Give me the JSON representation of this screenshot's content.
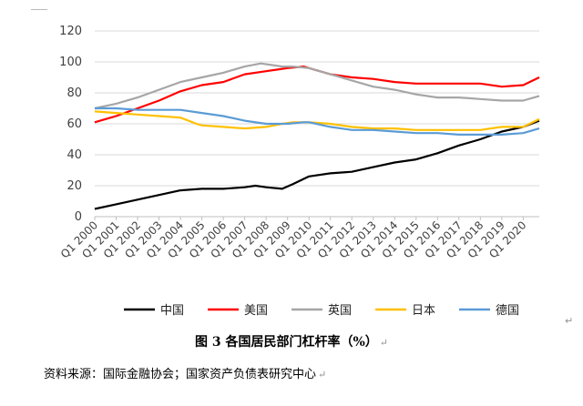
{
  "chart_data": {
    "type": "line",
    "title": "图 3 各国居民部门杠杆率（%）",
    "xlabel": "",
    "ylabel": "",
    "ylim": [
      0,
      120
    ],
    "y_ticks": [
      0,
      20,
      40,
      60,
      80,
      100,
      120
    ],
    "x_tick_labels": [
      "Q1 2000",
      "Q1 2001",
      "Q1 2002",
      "Q1 2003",
      "Q1 2004",
      "Q1 2005",
      "Q1 2006",
      "Q1 2007",
      "Q1 2008",
      "Q1 2009",
      "Q1 2010",
      "Q1 2011",
      "Q1 2012",
      "Q1 2013",
      "Q1 2014",
      "Q1 2015",
      "Q1 2016",
      "Q1 2017",
      "Q1 2018",
      "Q1 2019",
      "Q1 2020"
    ],
    "x_range": [
      2000.0,
      2020.75
    ],
    "grid": "horizontal",
    "legend_position": "bottom",
    "series": [
      {
        "name": "中国",
        "color": "#000000",
        "points": [
          [
            2000.0,
            5
          ],
          [
            2001.0,
            8
          ],
          [
            2002.0,
            11
          ],
          [
            2003.0,
            14
          ],
          [
            2004.0,
            17
          ],
          [
            2005.0,
            18
          ],
          [
            2006.0,
            18
          ],
          [
            2007.0,
            19
          ],
          [
            2007.5,
            20
          ],
          [
            2008.0,
            19
          ],
          [
            2008.75,
            18
          ],
          [
            2009.25,
            21
          ],
          [
            2010.0,
            26
          ],
          [
            2011.0,
            28
          ],
          [
            2012.0,
            29
          ],
          [
            2013.0,
            32
          ],
          [
            2014.0,
            35
          ],
          [
            2015.0,
            37
          ],
          [
            2016.0,
            41
          ],
          [
            2017.0,
            46
          ],
          [
            2018.0,
            50
          ],
          [
            2019.0,
            55
          ],
          [
            2020.0,
            58
          ],
          [
            2020.75,
            62
          ]
        ]
      },
      {
        "name": "美国",
        "color": "#ff0000",
        "points": [
          [
            2000.0,
            61
          ],
          [
            2001.0,
            65
          ],
          [
            2002.0,
            70
          ],
          [
            2003.0,
            75
          ],
          [
            2004.0,
            81
          ],
          [
            2005.0,
            85
          ],
          [
            2006.0,
            87
          ],
          [
            2007.0,
            92
          ],
          [
            2008.0,
            94
          ],
          [
            2008.5,
            95
          ],
          [
            2009.0,
            96
          ],
          [
            2009.75,
            97
          ],
          [
            2010.0,
            96
          ],
          [
            2011.0,
            92
          ],
          [
            2012.0,
            90
          ],
          [
            2013.0,
            89
          ],
          [
            2014.0,
            87
          ],
          [
            2015.0,
            86
          ],
          [
            2016.0,
            86
          ],
          [
            2017.0,
            86
          ],
          [
            2018.0,
            86
          ],
          [
            2019.0,
            84
          ],
          [
            2020.0,
            85
          ],
          [
            2020.75,
            90
          ]
        ]
      },
      {
        "name": "英国",
        "color": "#a6a6a6",
        "points": [
          [
            2000.0,
            70
          ],
          [
            2001.0,
            73
          ],
          [
            2002.0,
            77
          ],
          [
            2003.0,
            82
          ],
          [
            2004.0,
            87
          ],
          [
            2005.0,
            90
          ],
          [
            2006.0,
            93
          ],
          [
            2007.0,
            97
          ],
          [
            2007.75,
            99
          ],
          [
            2008.25,
            98
          ],
          [
            2008.75,
            97
          ],
          [
            2009.25,
            97
          ],
          [
            2010.0,
            96
          ],
          [
            2011.0,
            92
          ],
          [
            2012.0,
            88
          ],
          [
            2013.0,
            84
          ],
          [
            2014.0,
            82
          ],
          [
            2015.0,
            79
          ],
          [
            2016.0,
            77
          ],
          [
            2017.0,
            77
          ],
          [
            2018.0,
            76
          ],
          [
            2019.0,
            75
          ],
          [
            2020.0,
            75
          ],
          [
            2020.75,
            78
          ]
        ]
      },
      {
        "name": "日本",
        "color": "#ffc000",
        "points": [
          [
            2000.0,
            68
          ],
          [
            2001.0,
            67
          ],
          [
            2002.0,
            66
          ],
          [
            2003.0,
            65
          ],
          [
            2004.0,
            64
          ],
          [
            2004.75,
            60
          ],
          [
            2005.0,
            59
          ],
          [
            2006.0,
            58
          ],
          [
            2007.0,
            57
          ],
          [
            2008.0,
            58
          ],
          [
            2008.75,
            60
          ],
          [
            2009.25,
            61
          ],
          [
            2010.0,
            61
          ],
          [
            2011.0,
            60
          ],
          [
            2012.0,
            58
          ],
          [
            2013.0,
            57
          ],
          [
            2014.0,
            57
          ],
          [
            2015.0,
            56
          ],
          [
            2016.0,
            56
          ],
          [
            2017.0,
            56
          ],
          [
            2018.0,
            56
          ],
          [
            2019.0,
            58
          ],
          [
            2020.0,
            58
          ],
          [
            2020.75,
            63
          ]
        ]
      },
      {
        "name": "德国",
        "color": "#5b9bd5",
        "points": [
          [
            2000.0,
            70
          ],
          [
            2001.0,
            70
          ],
          [
            2002.0,
            69
          ],
          [
            2003.0,
            69
          ],
          [
            2004.0,
            69
          ],
          [
            2005.0,
            67
          ],
          [
            2006.0,
            65
          ],
          [
            2007.0,
            62
          ],
          [
            2008.0,
            60
          ],
          [
            2009.0,
            60
          ],
          [
            2009.75,
            61
          ],
          [
            2010.0,
            61
          ],
          [
            2011.0,
            58
          ],
          [
            2012.0,
            56
          ],
          [
            2013.0,
            56
          ],
          [
            2014.0,
            55
          ],
          [
            2015.0,
            54
          ],
          [
            2016.0,
            54
          ],
          [
            2017.0,
            53
          ],
          [
            2018.0,
            53
          ],
          [
            2019.0,
            53
          ],
          [
            2020.0,
            54
          ],
          [
            2020.75,
            57
          ]
        ]
      }
    ]
  },
  "caption": {
    "title": "图 3 各国居民部门杠杆率（%）"
  },
  "source_note": "资料来源：国际金融协会；国家资产负债表研究中心"
}
